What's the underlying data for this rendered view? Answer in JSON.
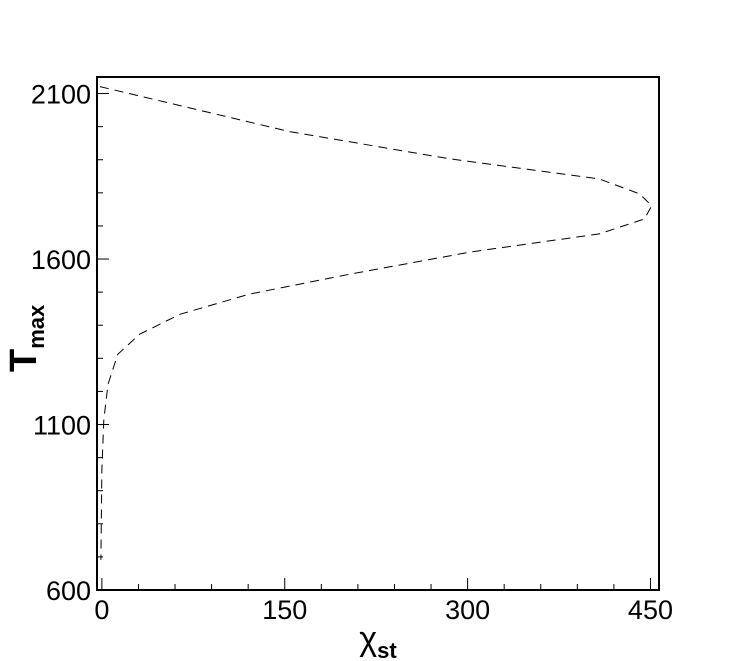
{
  "chart_data": {
    "type": "line",
    "xlabel": "χ",
    "xlabel_sub": "st",
    "ylabel": "T",
    "ylabel_sub": "max",
    "x": [
      -1.6,
      154,
      285,
      408,
      441,
      451,
      445,
      408,
      302,
      203,
      121,
      64,
      31,
      13,
      5,
      1.6,
      0,
      -0.8
    ],
    "series": [
      {
        "color": "#000000",
        "dashed": true,
        "values": [
          2121,
          1985,
          1903,
          1842,
          1797,
          1761,
          1721,
          1676,
          1621,
          1554,
          1494,
          1433,
          1373,
          1312,
          1221,
          1115,
          964,
          691
        ]
      }
    ],
    "xlim": [
      -4,
      457
    ],
    "ylim": [
      600,
      2150
    ],
    "xticks": [
      0,
      150,
      300,
      450
    ],
    "yticks": [
      600,
      1100,
      1600,
      2100
    ],
    "xminor": [
      30,
      60,
      90,
      120,
      180,
      210,
      240,
      270,
      330,
      360,
      390,
      420
    ],
    "yminor": [
      700,
      800,
      900,
      1000,
      1200,
      1300,
      1400,
      1500,
      1700,
      1800,
      1900,
      2000
    ],
    "grid": false
  }
}
